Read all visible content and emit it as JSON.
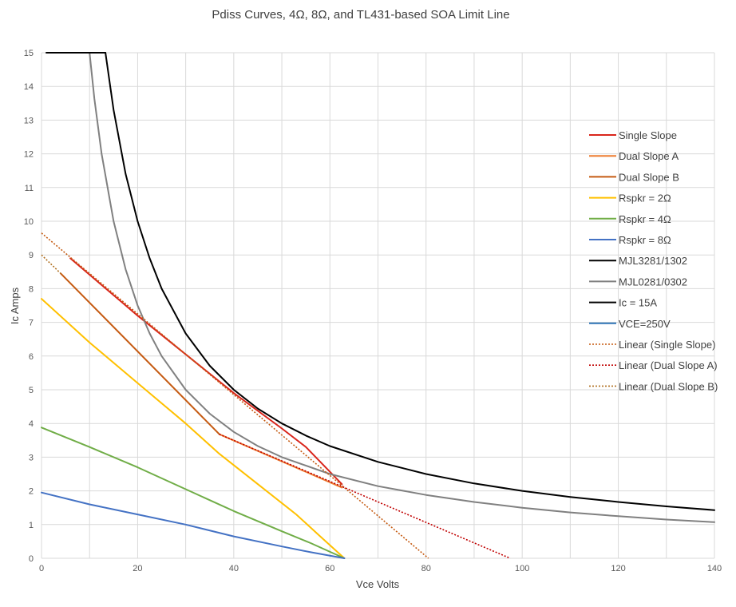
{
  "chart_data": {
    "type": "line",
    "title": "Pdiss Curves, 4Ω, 8Ω, and TL431-based SOA Limit Line",
    "xlabel": "Vce Volts",
    "ylabel": "Ic Amps",
    "xlim": [
      0,
      140
    ],
    "ylim": [
      0,
      15
    ],
    "xticks": [
      0,
      20,
      40,
      60,
      80,
      100,
      120,
      140
    ],
    "yticks": [
      0,
      1,
      2,
      3,
      4,
      5,
      6,
      7,
      8,
      9,
      10,
      11,
      12,
      13,
      14,
      15
    ],
    "grid": true,
    "legend_position": "right",
    "series": [
      {
        "name": "Single Slope",
        "color": "#d9261c",
        "style": "solid",
        "points": [
          [
            6,
            8.9
          ],
          [
            20,
            7.2
          ],
          [
            40,
            4.9
          ],
          [
            50,
            3.85
          ],
          [
            55,
            3.3
          ],
          [
            62.5,
            2.2
          ]
        ]
      },
      {
        "name": "Dual Slope A",
        "color": "#ed7d31",
        "style": "solid",
        "points": [
          [
            37,
            3.68
          ],
          [
            62.5,
            2.1
          ]
        ]
      },
      {
        "name": "Dual Slope B",
        "color": "#c55a11",
        "style": "solid",
        "points": [
          [
            4,
            8.45
          ],
          [
            37,
            3.68
          ]
        ]
      },
      {
        "name": "Rspkr = 2Ω",
        "color": "#ffc000",
        "style": "solid",
        "points": [
          [
            0,
            7.7
          ],
          [
            10,
            6.4
          ],
          [
            20,
            5.2
          ],
          [
            30,
            4.0
          ],
          [
            37,
            3.1
          ],
          [
            45,
            2.2
          ],
          [
            53,
            1.3
          ],
          [
            58,
            0.65
          ],
          [
            63,
            0
          ]
        ]
      },
      {
        "name": "Rspkr = 4Ω",
        "color": "#70ad47",
        "style": "solid",
        "points": [
          [
            0,
            3.88
          ],
          [
            10,
            3.3
          ],
          [
            20,
            2.7
          ],
          [
            30,
            2.05
          ],
          [
            40,
            1.4
          ],
          [
            50,
            0.8
          ],
          [
            56,
            0.45
          ],
          [
            63,
            0
          ]
        ]
      },
      {
        "name": "Rspkr = 8Ω",
        "color": "#4472c4",
        "style": "solid",
        "points": [
          [
            0,
            1.95
          ],
          [
            10,
            1.6
          ],
          [
            20,
            1.3
          ],
          [
            30,
            1.0
          ],
          [
            40,
            0.65
          ],
          [
            50,
            0.35
          ],
          [
            56,
            0.18
          ],
          [
            63,
            0
          ]
        ]
      },
      {
        "name": "MJL3281/1302",
        "color": "#000000",
        "style": "solid",
        "points": [
          [
            13.3,
            15
          ],
          [
            15,
            13.3
          ],
          [
            17.5,
            11.4
          ],
          [
            20,
            10.0
          ],
          [
            22.5,
            8.9
          ],
          [
            25,
            8.0
          ],
          [
            30,
            6.67
          ],
          [
            35,
            5.71
          ],
          [
            40,
            5.0
          ],
          [
            45,
            4.44
          ],
          [
            50,
            4.0
          ],
          [
            55,
            3.64
          ],
          [
            60,
            3.33
          ],
          [
            70,
            2.86
          ],
          [
            80,
            2.5
          ],
          [
            90,
            2.22
          ],
          [
            100,
            2.0
          ],
          [
            110,
            1.82
          ],
          [
            120,
            1.67
          ],
          [
            130,
            1.54
          ],
          [
            140,
            1.43
          ]
        ]
      },
      {
        "name": "MJL0281/0302",
        "color": "#808080",
        "style": "solid",
        "points": [
          [
            10,
            15
          ],
          [
            11,
            13.64
          ],
          [
            12.5,
            12.0
          ],
          [
            15,
            10.0
          ],
          [
            17.5,
            8.57
          ],
          [
            20,
            7.5
          ],
          [
            22.5,
            6.67
          ],
          [
            25,
            6.0
          ],
          [
            30,
            5.0
          ],
          [
            35,
            4.29
          ],
          [
            40,
            3.75
          ],
          [
            45,
            3.33
          ],
          [
            50,
            3.0
          ],
          [
            60,
            2.5
          ],
          [
            70,
            2.14
          ],
          [
            80,
            1.88
          ],
          [
            90,
            1.67
          ],
          [
            100,
            1.5
          ],
          [
            110,
            1.36
          ],
          [
            120,
            1.25
          ],
          [
            130,
            1.15
          ],
          [
            140,
            1.07
          ]
        ]
      },
      {
        "name": "Ic = 15A",
        "color": "#000000",
        "style": "solid",
        "points": [
          [
            1,
            15
          ],
          [
            13.3,
            15
          ]
        ]
      },
      {
        "name": "VCE=250V",
        "color": "#2e75b6",
        "style": "solid",
        "points": []
      },
      {
        "name": "Linear (Single Slope)",
        "color": "#c55a11",
        "style": "dotted",
        "points": [
          [
            0,
            9.65
          ],
          [
            80.5,
            0
          ]
        ]
      },
      {
        "name": "Linear (Dual Slope A)",
        "color": "#c00000",
        "style": "dotted",
        "points": [
          [
            37,
            3.68
          ],
          [
            97.5,
            0
          ]
        ]
      },
      {
        "name": "Linear (Dual Slope B)",
        "color": "#b07020",
        "style": "dotted",
        "points": [
          [
            0,
            9.0
          ],
          [
            4,
            8.45
          ]
        ]
      }
    ]
  }
}
